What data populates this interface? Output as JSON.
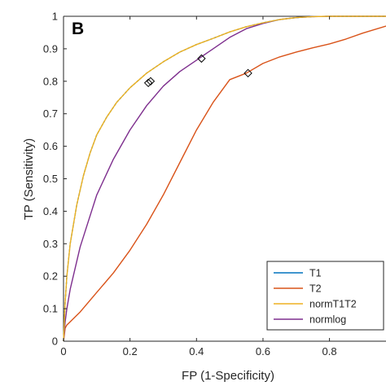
{
  "chart_data": {
    "type": "line",
    "panel_label": "B",
    "xlabel": "FP (1-Specificity)",
    "ylabel": "TP (Sensitivity)",
    "xlim": [
      0,
      0.97
    ],
    "ylim": [
      0,
      1
    ],
    "x_ticks": [
      "0",
      "0.2",
      "0.4",
      "0.6",
      "0.8"
    ],
    "y_ticks": [
      "0",
      "0.1",
      "0.2",
      "0.3",
      "0.4",
      "0.5",
      "0.6",
      "0.7",
      "0.8",
      "0.9",
      "1"
    ],
    "grid": false,
    "legend_position": "bottom-right",
    "series": [
      {
        "name": "T1",
        "color": "#0072BD",
        "dashed": true,
        "x": [
          0,
          0.005,
          0.01,
          0.02,
          0.04,
          0.06,
          0.08,
          0.1,
          0.13,
          0.16,
          0.2,
          0.25,
          0.3,
          0.35,
          0.4,
          0.45,
          0.5,
          0.55,
          0.6,
          0.65,
          0.7,
          0.75,
          0.8,
          0.85,
          0.9,
          0.97
        ],
        "y": [
          0,
          0.12,
          0.2,
          0.3,
          0.42,
          0.51,
          0.58,
          0.635,
          0.69,
          0.735,
          0.78,
          0.825,
          0.86,
          0.89,
          0.913,
          0.932,
          0.952,
          0.968,
          0.98,
          0.99,
          0.996,
          0.999,
          1,
          1,
          1,
          1
        ],
        "marker": [
          0.255,
          0.795
        ]
      },
      {
        "name": "T2",
        "color": "#D95319",
        "dashed": false,
        "x": [
          0,
          0.005,
          0.01,
          0.02,
          0.05,
          0.1,
          0.15,
          0.2,
          0.25,
          0.3,
          0.35,
          0.4,
          0.45,
          0.5,
          0.55,
          0.6,
          0.65,
          0.7,
          0.75,
          0.8,
          0.85,
          0.9,
          0.97
        ],
        "y": [
          0,
          0.04,
          0.05,
          0.06,
          0.09,
          0.15,
          0.21,
          0.28,
          0.36,
          0.45,
          0.55,
          0.65,
          0.735,
          0.805,
          0.825,
          0.855,
          0.875,
          0.89,
          0.903,
          0.915,
          0.93,
          0.948,
          0.97
        ],
        "marker": [
          0.555,
          0.825
        ]
      },
      {
        "name": "normT1T2",
        "color": "#EDB120",
        "dashed": false,
        "x": [
          0,
          0.005,
          0.01,
          0.02,
          0.04,
          0.06,
          0.08,
          0.1,
          0.13,
          0.16,
          0.2,
          0.25,
          0.3,
          0.35,
          0.4,
          0.45,
          0.5,
          0.55,
          0.6,
          0.65,
          0.7,
          0.75,
          0.8,
          0.85,
          0.9,
          0.97
        ],
        "y": [
          0,
          0.12,
          0.2,
          0.3,
          0.42,
          0.51,
          0.58,
          0.635,
          0.69,
          0.735,
          0.78,
          0.825,
          0.86,
          0.89,
          0.913,
          0.932,
          0.952,
          0.968,
          0.98,
          0.99,
          0.996,
          0.999,
          1,
          1,
          1,
          1
        ],
        "marker": [
          0.262,
          0.8
        ]
      },
      {
        "name": "normlog",
        "color": "#7E2F8E",
        "dashed": false,
        "x": [
          0,
          0.005,
          0.01,
          0.02,
          0.05,
          0.1,
          0.15,
          0.2,
          0.25,
          0.3,
          0.35,
          0.4,
          0.45,
          0.5,
          0.55,
          0.6,
          0.65,
          0.7,
          0.75,
          0.8,
          0.85,
          0.9,
          0.97
        ],
        "y": [
          0,
          0.06,
          0.1,
          0.16,
          0.29,
          0.45,
          0.56,
          0.65,
          0.725,
          0.785,
          0.83,
          0.865,
          0.9,
          0.935,
          0.962,
          0.978,
          0.99,
          0.996,
          0.999,
          1,
          1,
          1,
          1
        ],
        "marker": [
          0.415,
          0.87
        ]
      }
    ]
  }
}
